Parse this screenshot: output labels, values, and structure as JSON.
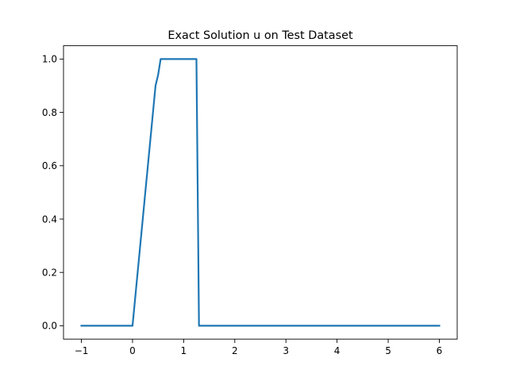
{
  "chart_data": {
    "type": "line",
    "title": "Exact Solution u on Test Dataset",
    "xlabel": "",
    "ylabel": "",
    "xlim": [
      -1.35,
      6.35
    ],
    "ylim": [
      -0.05,
      1.05
    ],
    "x_ticks": [
      -1,
      0,
      1,
      2,
      3,
      4,
      5,
      6
    ],
    "x_tick_labels": [
      "−1",
      "0",
      "1",
      "2",
      "3",
      "4",
      "5",
      "6"
    ],
    "y_ticks": [
      0.0,
      0.2,
      0.4,
      0.6,
      0.8,
      1.0
    ],
    "y_tick_labels": [
      "0.0",
      "0.2",
      "0.4",
      "0.6",
      "0.8",
      "1.0"
    ],
    "grid": false,
    "series": [
      {
        "color": "#1f77b4",
        "x": [
          -1,
          0,
          0.05,
          0.1,
          0.15,
          0.2,
          0.25,
          0.3,
          0.35,
          0.4,
          0.45,
          0.5,
          0.55,
          1.25,
          1.3,
          6
        ],
        "y": [
          0,
          0,
          0.1,
          0.2,
          0.3,
          0.4,
          0.5,
          0.6,
          0.7,
          0.8,
          0.9,
          0.94,
          1.0,
          1.0,
          0.0,
          0.0
        ]
      }
    ]
  }
}
